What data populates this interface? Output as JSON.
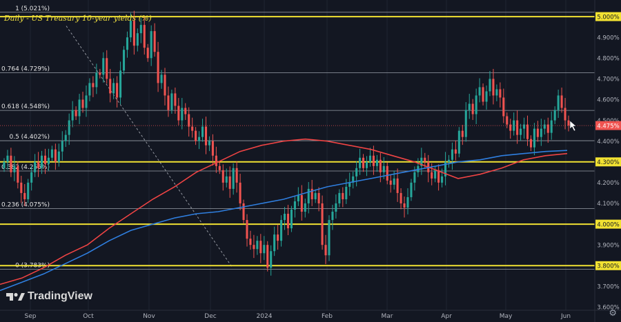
{
  "title": "Daily - US Treasury 10-year yields (%)",
  "brand": "TradingView",
  "settings_icon": "gear-icon",
  "chart_data": {
    "type": "candlestick",
    "ylim": [
      3.585,
      5.08
    ],
    "y_ticks": [
      "3.600%",
      "3.700%",
      "3.800%",
      "3.900%",
      "4.000%",
      "4.100%",
      "4.200%",
      "4.300%",
      "4.400%",
      "4.500%",
      "4.600%",
      "4.700%",
      "4.800%",
      "4.900%",
      "5.000%"
    ],
    "x_ticks": [
      "Sep",
      "Oct",
      "Nov",
      "Dec",
      "2024",
      "Feb",
      "Mar",
      "Apr",
      "May",
      "Jun"
    ],
    "last_price": {
      "label": "4.475%",
      "value": 4.475
    },
    "fib_levels": [
      {
        "label": "1 (5.021%)",
        "value": 5.021
      },
      {
        "label": "0.764 (4.729%)",
        "value": 4.729
      },
      {
        "label": "0.618 (4.548%)",
        "value": 4.548
      },
      {
        "label": "0.5 (4.402%)",
        "value": 4.402
      },
      {
        "label": "0.382 (4.256%)",
        "value": 4.256
      },
      {
        "label": "0.236 (4.075%)",
        "value": 4.075
      },
      {
        "label": "0 (3.783%)",
        "value": 3.783
      }
    ],
    "key_levels": [
      {
        "label": "5.000%",
        "value": 5.0
      },
      {
        "label": "4.300%",
        "value": 4.3
      },
      {
        "label": "4.000%",
        "value": 4.0
      },
      {
        "label": "3.800%",
        "value": 3.8
      }
    ],
    "candle_closes": [
      4.3,
      4.33,
      4.25,
      4.28,
      4.2,
      4.15,
      4.12,
      4.2,
      4.25,
      4.3,
      4.27,
      4.33,
      4.29,
      4.32,
      4.36,
      4.3,
      4.35,
      4.4,
      4.43,
      4.5,
      4.55,
      4.52,
      4.6,
      4.56,
      4.62,
      4.68,
      4.66,
      4.73,
      4.72,
      4.8,
      4.7,
      4.63,
      4.68,
      4.61,
      4.74,
      4.84,
      4.9,
      4.98,
      4.86,
      4.92,
      4.96,
      4.85,
      4.8,
      4.93,
      4.83,
      4.68,
      4.72,
      4.62,
      4.55,
      4.63,
      4.57,
      4.5,
      4.56,
      4.53,
      4.47,
      4.45,
      4.4,
      4.42,
      4.47,
      4.38,
      4.4,
      4.33,
      4.28,
      4.26,
      4.2,
      4.23,
      4.17,
      4.27,
      4.2,
      4.1,
      4.02,
      3.93,
      3.9,
      3.88,
      3.92,
      3.86,
      3.9,
      3.79,
      3.87,
      3.95,
      3.92,
      4.02,
      4.05,
      3.98,
      4.07,
      4.11,
      4.14,
      4.06,
      4.1,
      4.17,
      4.12,
      4.15,
      4.1,
      3.9,
      3.85,
      4.02,
      4.06,
      4.1,
      4.15,
      4.12,
      4.18,
      4.2,
      4.23,
      4.27,
      4.32,
      4.27,
      4.3,
      4.33,
      4.28,
      4.31,
      4.25,
      4.28,
      4.21,
      4.19,
      4.22,
      4.15,
      4.1,
      4.08,
      4.13,
      4.2,
      4.25,
      4.28,
      4.32,
      4.3,
      4.25,
      4.22,
      4.26,
      4.2,
      4.23,
      4.3,
      4.31,
      4.36,
      4.34,
      4.45,
      4.42,
      4.55,
      4.58,
      4.53,
      4.62,
      4.66,
      4.59,
      4.64,
      4.7,
      4.62,
      4.65,
      4.61,
      4.52,
      4.48,
      4.45,
      4.5,
      4.43,
      4.46,
      4.48,
      4.41,
      4.37,
      4.46,
      4.42,
      4.46,
      4.48,
      4.44,
      4.5,
      4.55,
      4.62,
      4.56,
      4.5,
      4.475
    ],
    "series": [
      {
        "name": "",
        "color": "#f04444",
        "values": [
          3.71,
          3.74,
          3.79,
          3.85,
          3.9,
          3.98,
          4.05,
          4.12,
          4.18,
          4.25,
          4.3,
          4.35,
          4.38,
          4.4,
          4.41,
          4.4,
          4.38,
          4.36,
          4.33,
          4.3,
          4.26,
          4.22,
          4.24,
          4.27,
          4.31,
          4.33,
          4.34
        ]
      },
      {
        "name": "",
        "color": "#2f7fe0",
        "values": [
          3.68,
          3.72,
          3.76,
          3.81,
          3.86,
          3.92,
          3.97,
          4.0,
          4.03,
          4.05,
          4.06,
          4.08,
          4.1,
          4.12,
          4.15,
          4.18,
          4.2,
          4.22,
          4.24,
          4.26,
          4.28,
          4.3,
          4.31,
          4.33,
          4.34,
          4.35,
          4.355
        ]
      }
    ]
  }
}
